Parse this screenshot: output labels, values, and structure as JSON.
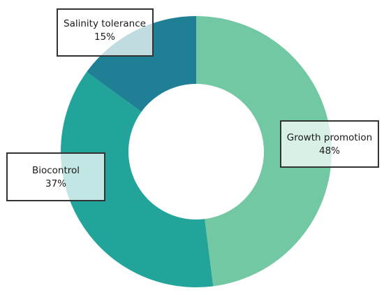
{
  "chart_data": {
    "type": "pie",
    "donut": true,
    "title": "",
    "categories": [
      "Growth promotion",
      "Biocontrol",
      "Salinity tolerance"
    ],
    "values": [
      48,
      37,
      15
    ],
    "value_labels": [
      "48%",
      "37%",
      "15%"
    ],
    "colors": [
      "#73c8a4",
      "#22a49b",
      "#1f8095"
    ],
    "legend": "none"
  }
}
